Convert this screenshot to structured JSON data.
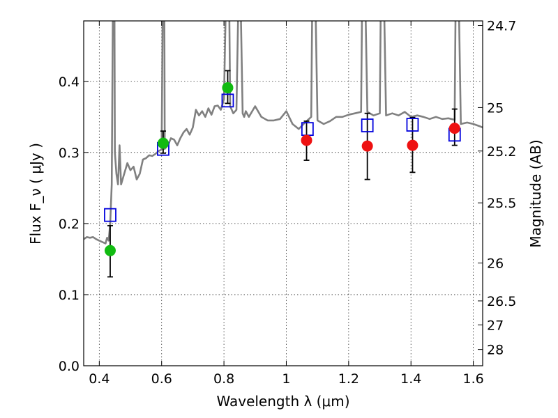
{
  "chart_data": {
    "type": "scatter",
    "xlabel": "Wavelength  λ (μm)",
    "ylabel": "Flux  F_ν  ( μJy )",
    "ylabel_right": "Magnitude (AB)",
    "xlim": [
      0.35,
      1.63
    ],
    "ylim": [
      0.0,
      0.485
    ],
    "grid": true,
    "x_ticks": [
      0.4,
      0.6,
      0.8,
      1.0,
      1.2,
      1.4,
      1.6
    ],
    "x_tick_labels": [
      "0.4",
      "0.6",
      "0.8",
      "1",
      "1.2",
      "1.4",
      "1.6"
    ],
    "y_ticks": [
      0.0,
      0.1,
      0.2,
      0.3,
      0.4
    ],
    "y_tick_labels": [
      "0.0",
      "0.1",
      "0.2",
      "0.3",
      "0.4"
    ],
    "right_ticks": [
      {
        "label": "24.7",
        "flux": 0.4786
      },
      {
        "label": "25",
        "flux": 0.3631
      },
      {
        "label": "25.2",
        "flux": 0.302
      },
      {
        "label": "25.5",
        "flux": 0.2291
      },
      {
        "label": "26",
        "flux": 0.1445
      },
      {
        "label": "26.5",
        "flux": 0.0912
      },
      {
        "label": "27",
        "flux": 0.0575
      },
      {
        "label": "28",
        "flux": 0.0229
      }
    ],
    "colors": {
      "green": "#11bb11",
      "red": "#ee1111",
      "blue": "#0000dd",
      "model": "#808080",
      "errbar": "#000000"
    },
    "series": [
      {
        "marker": "circle-green",
        "x": [
          0.435,
          0.605,
          0.812
        ],
        "y": [
          0.162,
          0.313,
          0.391
        ],
        "yerr_low": [
          0.037,
          0.014,
          0.022
        ],
        "yerr_high": [
          0.035,
          0.017,
          0.024
        ]
      },
      {
        "marker": "circle-red",
        "x": [
          1.065,
          1.26,
          1.405,
          1.54
        ],
        "y": [
          0.317,
          0.309,
          0.31,
          0.334
        ],
        "yerr_low": [
          0.028,
          0.047,
          0.038,
          0.024
        ],
        "yerr_high": [
          0.027,
          0.046,
          0.039,
          0.027
        ]
      },
      {
        "marker": "square-blue",
        "x": [
          0.435,
          0.605,
          0.812,
          1.068,
          1.26,
          1.405,
          1.54
        ],
        "y": [
          0.212,
          0.305,
          0.373,
          0.333,
          0.338,
          0.339,
          0.325
        ]
      }
    ],
    "model_spectrum": {
      "x": [
        0.35,
        0.36,
        0.37,
        0.38,
        0.39,
        0.4,
        0.41,
        0.42,
        0.425,
        0.43,
        0.435,
        0.44,
        0.445,
        0.448,
        0.45,
        0.455,
        0.46,
        0.465,
        0.47,
        0.48,
        0.49,
        0.5,
        0.51,
        0.52,
        0.53,
        0.54,
        0.55,
        0.56,
        0.57,
        0.58,
        0.59,
        0.6,
        0.605,
        0.608,
        0.61,
        0.62,
        0.63,
        0.64,
        0.65,
        0.66,
        0.67,
        0.68,
        0.69,
        0.7,
        0.71,
        0.72,
        0.73,
        0.74,
        0.75,
        0.76,
        0.77,
        0.78,
        0.79,
        0.8,
        0.81,
        0.815,
        0.82,
        0.83,
        0.84,
        0.85,
        0.86,
        0.865,
        0.87,
        0.88,
        0.9,
        0.92,
        0.94,
        0.96,
        0.98,
        1.0,
        1.02,
        1.04,
        1.06,
        1.08,
        1.085,
        1.09,
        1.1,
        1.12,
        1.14,
        1.16,
        1.18,
        1.2,
        1.22,
        1.24,
        1.245,
        1.25,
        1.26,
        1.28,
        1.3,
        1.305,
        1.31,
        1.32,
        1.34,
        1.36,
        1.38,
        1.4,
        1.42,
        1.44,
        1.46,
        1.48,
        1.5,
        1.52,
        1.54,
        1.545,
        1.55,
        1.56,
        1.58,
        1.6,
        1.62,
        1.63
      ],
      "y": [
        0.178,
        0.181,
        0.18,
        0.181,
        0.178,
        0.176,
        0.174,
        0.172,
        0.18,
        0.176,
        0.2,
        0.255,
        0.6,
        0.6,
        0.3,
        0.27,
        0.255,
        0.31,
        0.255,
        0.27,
        0.285,
        0.275,
        0.28,
        0.262,
        0.27,
        0.29,
        0.292,
        0.296,
        0.295,
        0.298,
        0.302,
        0.304,
        0.6,
        0.6,
        0.305,
        0.31,
        0.32,
        0.318,
        0.31,
        0.32,
        0.328,
        0.333,
        0.325,
        0.335,
        0.36,
        0.352,
        0.358,
        0.35,
        0.362,
        0.353,
        0.365,
        0.366,
        0.36,
        0.375,
        0.6,
        0.6,
        0.365,
        0.355,
        0.36,
        0.6,
        0.355,
        0.35,
        0.358,
        0.35,
        0.365,
        0.35,
        0.345,
        0.345,
        0.347,
        0.358,
        0.34,
        0.333,
        0.342,
        0.35,
        0.6,
        0.6,
        0.345,
        0.34,
        0.344,
        0.35,
        0.35,
        0.353,
        0.355,
        0.357,
        0.6,
        0.6,
        0.357,
        0.352,
        0.355,
        0.6,
        0.6,
        0.352,
        0.355,
        0.352,
        0.357,
        0.35,
        0.352,
        0.35,
        0.347,
        0.35,
        0.347,
        0.348,
        0.346,
        0.6,
        0.6,
        0.34,
        0.342,
        0.34,
        0.337,
        0.335
      ]
    }
  }
}
